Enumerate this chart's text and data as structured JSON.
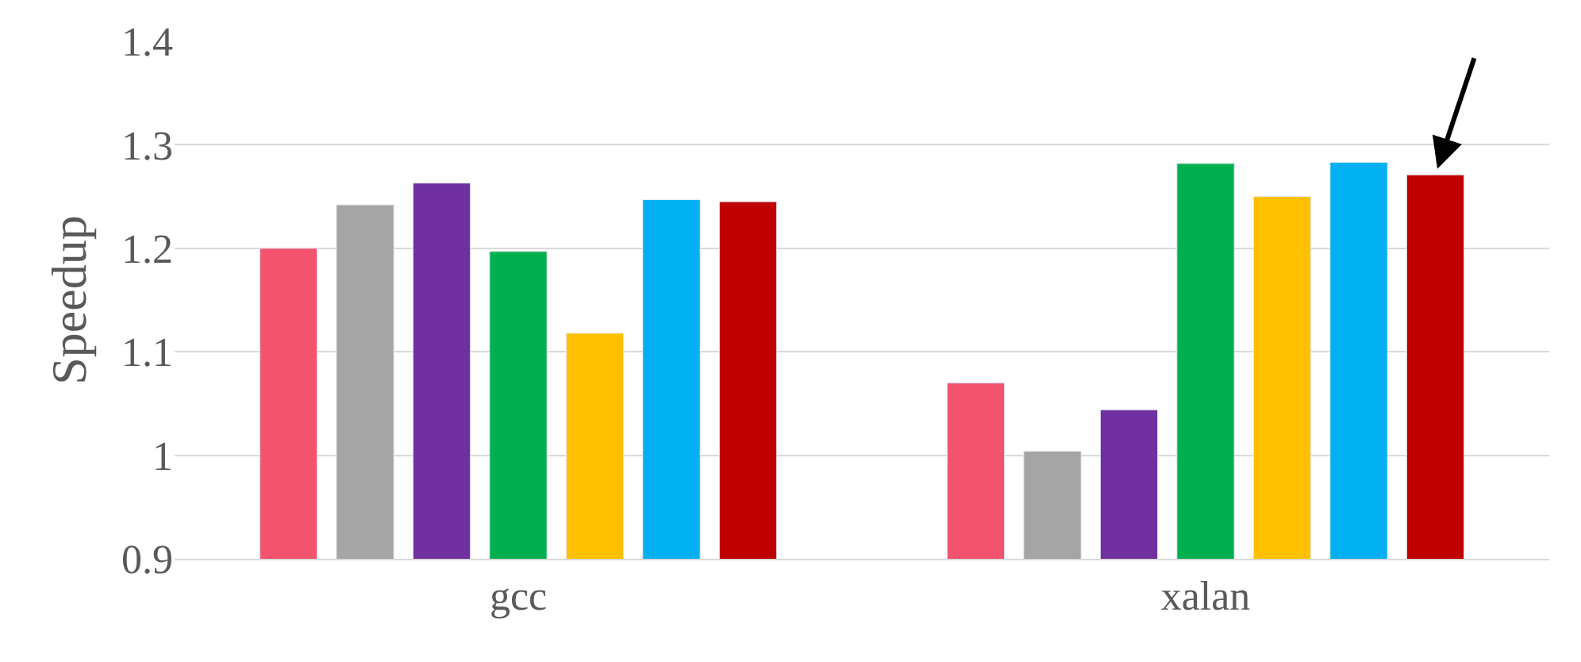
{
  "chart_data": {
    "type": "bar",
    "ylabel": "Speedup",
    "categories": [
      "gcc",
      "xalan"
    ],
    "series": [
      {
        "color": "#f4536e",
        "values": [
          1.2,
          1.07
        ]
      },
      {
        "color": "#a5a5a5",
        "values": [
          1.242,
          1.004
        ]
      },
      {
        "color": "#7030a0",
        "values": [
          1.263,
          1.044
        ]
      },
      {
        "color": "#00b050",
        "values": [
          1.197,
          1.282
        ]
      },
      {
        "color": "#ffc000",
        "values": [
          1.118,
          1.25
        ]
      },
      {
        "color": "#00b0f0",
        "values": [
          1.247,
          1.283
        ]
      },
      {
        "color": "#c00000",
        "values": [
          1.245,
          1.271
        ]
      }
    ],
    "ylim": [
      0.9,
      1.4
    ],
    "yticks": [
      0.9,
      1,
      1.1,
      1.2,
      1.3,
      1.4
    ],
    "grid": "y"
  }
}
